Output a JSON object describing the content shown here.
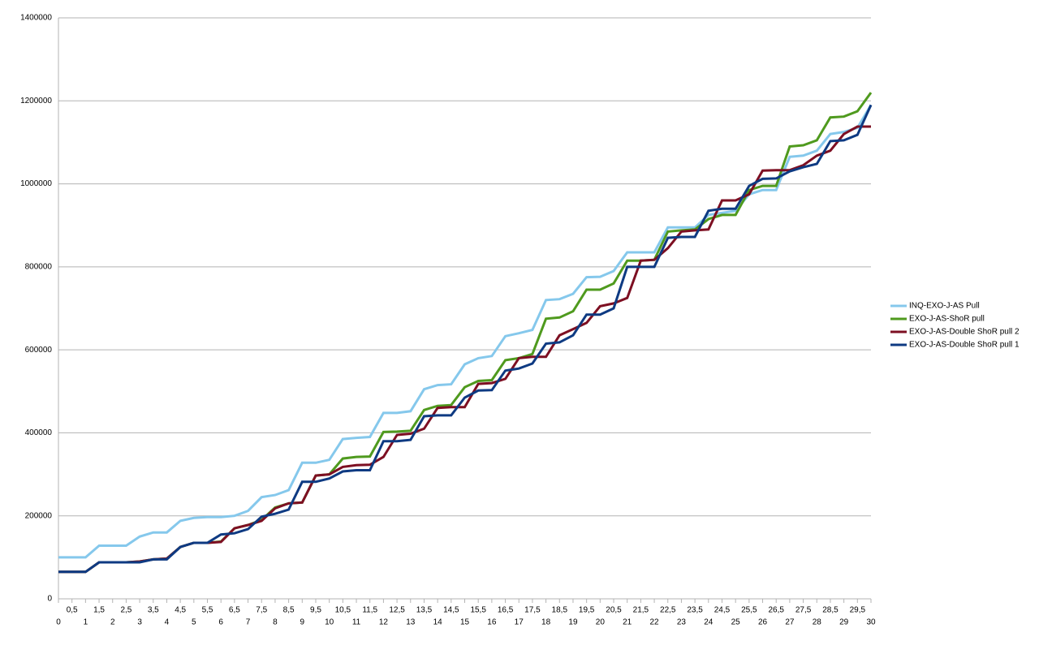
{
  "chart_data": {
    "type": "line",
    "x": [
      0,
      0.5,
      1,
      1.5,
      2,
      2.5,
      3,
      3.5,
      4,
      4.5,
      5,
      5.5,
      6,
      6.5,
      7,
      7.5,
      8,
      8.5,
      9,
      9.5,
      10,
      10.5,
      11,
      11.5,
      12,
      12.5,
      13,
      13.5,
      14,
      14.5,
      15,
      15.5,
      16,
      16.5,
      17,
      17.5,
      18,
      18.5,
      19,
      19.5,
      20,
      20.5,
      21,
      21.5,
      22,
      22.5,
      23,
      23.5,
      24,
      24.5,
      25,
      25.5,
      26,
      26.5,
      27,
      27.5,
      28,
      28.5,
      29,
      29.5,
      30
    ],
    "series": [
      {
        "name": "INQ-EXO-J-AS Pull",
        "color": "#85c8ec",
        "values": [
          100000,
          100000,
          100000,
          128000,
          128000,
          128000,
          150000,
          160000,
          160000,
          188000,
          195000,
          197000,
          197000,
          200000,
          212000,
          245000,
          250000,
          262000,
          328000,
          328000,
          335000,
          385000,
          388000,
          390000,
          448000,
          448000,
          452000,
          505000,
          515000,
          517000,
          565000,
          580000,
          585000,
          633000,
          640000,
          648000,
          720000,
          722000,
          735000,
          775000,
          776000,
          790000,
          835000,
          835000,
          835000,
          895000,
          895000,
          895000,
          925000,
          930000,
          935000,
          975000,
          985000,
          985000,
          1065000,
          1068000,
          1080000,
          1120000,
          1125000,
          1135000,
          1190000
        ]
      },
      {
        "name": "EXO-J-AS-ShoR pull",
        "color": "#4f9a1e",
        "values": [
          65000,
          65000,
          65000,
          88000,
          88000,
          88000,
          90000,
          95000,
          97000,
          125000,
          135000,
          135000,
          138000,
          170000,
          178000,
          190000,
          220000,
          230000,
          232000,
          297000,
          300000,
          338000,
          342000,
          343000,
          402000,
          403000,
          405000,
          455000,
          465000,
          467000,
          510000,
          525000,
          527000,
          575000,
          580000,
          590000,
          675000,
          678000,
          693000,
          745000,
          745000,
          760000,
          815000,
          815000,
          817000,
          885000,
          888000,
          890000,
          915000,
          925000,
          925000,
          985000,
          995000,
          995000,
          1090000,
          1093000,
          1105000,
          1160000,
          1162000,
          1175000,
          1220000
        ]
      },
      {
        "name": "EXO-J-AS-Double ShoR pull 2",
        "color": "#7d0f22",
        "values": [
          65000,
          65000,
          65000,
          88000,
          88000,
          88000,
          90000,
          95000,
          97000,
          125000,
          135000,
          135000,
          137000,
          170000,
          178000,
          188000,
          218000,
          230000,
          232000,
          297000,
          300000,
          318000,
          322000,
          323000,
          342000,
          395000,
          398000,
          410000,
          460000,
          462000,
          462000,
          518000,
          520000,
          530000,
          580000,
          583000,
          583000,
          635000,
          650000,
          665000,
          705000,
          712000,
          725000,
          815000,
          817000,
          845000,
          885000,
          888000,
          890000,
          960000,
          960000,
          975000,
          1032000,
          1033000,
          1033000,
          1045000,
          1068000,
          1080000,
          1120000,
          1138000,
          1138000
        ]
      },
      {
        "name": "EXO-J-AS-Double ShoR pull 1",
        "color": "#0e3a82",
        "values": [
          65000,
          65000,
          65000,
          88000,
          88000,
          88000,
          88000,
          95000,
          95000,
          125000,
          135000,
          135000,
          155000,
          158000,
          168000,
          198000,
          205000,
          215000,
          282000,
          282000,
          290000,
          307000,
          310000,
          310000,
          380000,
          380000,
          383000,
          440000,
          442000,
          442000,
          485000,
          502000,
          503000,
          550000,
          555000,
          567000,
          615000,
          618000,
          635000,
          685000,
          685000,
          700000,
          800000,
          800000,
          800000,
          870000,
          872000,
          872000,
          935000,
          940000,
          940000,
          995000,
          1012000,
          1013000,
          1030000,
          1040000,
          1048000,
          1103000,
          1105000,
          1118000,
          1190000
        ]
      }
    ],
    "xlim": [
      0,
      30
    ],
    "xticks": [
      0,
      {
        "value": 0.5,
        "label": "0,5"
      },
      1,
      {
        "value": 1.5,
        "label": "1,5"
      },
      2,
      {
        "value": 2.5,
        "label": "2,5"
      },
      3,
      {
        "value": 3.5,
        "label": "3,5"
      },
      4,
      {
        "value": 4.5,
        "label": "4,5"
      },
      5,
      {
        "value": 5.5,
        "label": "5,5"
      },
      6,
      {
        "value": 6.5,
        "label": "6,5"
      },
      7,
      {
        "value": 7.5,
        "label": "7,5"
      },
      8,
      {
        "value": 8.5,
        "label": "8,5"
      },
      9,
      {
        "value": 9.5,
        "label": "9,5"
      },
      10,
      {
        "value": 10.5,
        "label": "10,5"
      },
      11,
      {
        "value": 11.5,
        "label": "11,5"
      },
      12,
      {
        "value": 12.5,
        "label": "12,5"
      },
      13,
      {
        "value": 13.5,
        "label": "13,5"
      },
      14,
      {
        "value": 14.5,
        "label": "14,5"
      },
      15,
      {
        "value": 15.5,
        "label": "15,5"
      },
      16,
      {
        "value": 16.5,
        "label": "16,5"
      },
      17,
      {
        "value": 17.5,
        "label": "17,5"
      },
      18,
      {
        "value": 18.5,
        "label": "18,5"
      },
      19,
      {
        "value": 19.5,
        "label": "19,5"
      },
      20,
      {
        "value": 20.5,
        "label": "20,5"
      },
      21,
      {
        "value": 21.5,
        "label": "21,5"
      },
      22,
      {
        "value": 22.5,
        "label": "22,5"
      },
      23,
      {
        "value": 23.5,
        "label": "23,5"
      },
      24,
      {
        "value": 24.5,
        "label": "24,5"
      },
      25,
      {
        "value": 25.5,
        "label": "25,5"
      },
      26,
      {
        "value": 26.5,
        "label": "26,5"
      },
      27,
      {
        "value": 27.5,
        "label": "27,5"
      },
      28,
      {
        "value": 28.5,
        "label": "28,5"
      },
      29,
      {
        "value": 29.5,
        "label": "29,5"
      },
      30
    ],
    "ylim": [
      0,
      1400000
    ],
    "yticks": [
      0,
      200000,
      400000,
      600000,
      800000,
      1000000,
      1200000,
      1400000
    ],
    "grid": true,
    "legend": "right"
  }
}
